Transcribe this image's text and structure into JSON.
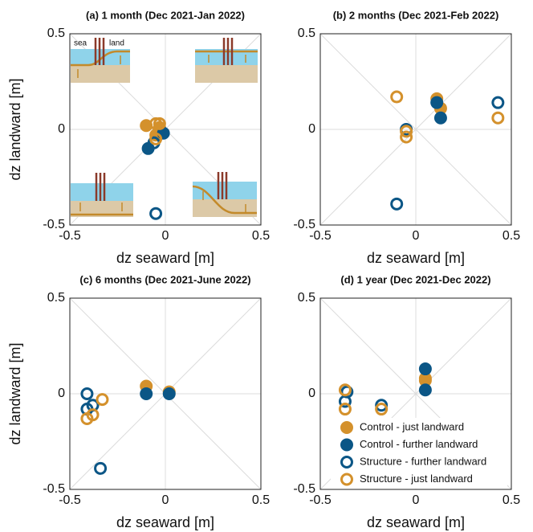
{
  "chart_data": [
    {
      "type": "scatter",
      "title": "(a) 1 month (Dec 2021-Jan 2022)",
      "xlabel": "dz seaward [m]",
      "ylabel": "dz landward [m]",
      "annotations": [
        "sea",
        "land"
      ],
      "xlim": [
        -0.5,
        0.5
      ],
      "ylim": [
        -0.5,
        0.5
      ],
      "xticks": [
        -0.5,
        0,
        0.5
      ],
      "yticks": [
        -0.5,
        0,
        0.5
      ],
      "grid": true,
      "series": [
        {
          "color": "#d4912c",
          "filled": true,
          "x": [
            -0.1,
            -0.03,
            -0.05
          ],
          "y": [
            0.02,
            0.01,
            -0.03
          ]
        },
        {
          "color": "#0b5686",
          "filled": true,
          "x": [
            -0.09,
            -0.01
          ],
          "y": [
            -0.1,
            -0.02
          ]
        },
        {
          "color": "#0b5686",
          "filled": false,
          "x": [
            -0.05,
            -0.06
          ],
          "y": [
            -0.44,
            -0.07
          ]
        },
        {
          "color": "#d4912c",
          "filled": false,
          "x": [
            -0.05,
            -0.05,
            -0.03
          ],
          "y": [
            0.03,
            -0.05,
            0.03
          ]
        }
      ]
    },
    {
      "type": "scatter",
      "title": "(b) 2 months (Dec 2021-Feb 2022)",
      "xlabel": "dz seaward [m]",
      "xlim": [
        -0.5,
        0.5
      ],
      "ylim": [
        -0.5,
        0.5
      ],
      "xticks": [
        -0.5,
        0,
        0.5
      ],
      "yticks": [
        -0.5,
        0,
        0.5
      ],
      "grid": true,
      "series": [
        {
          "color": "#d4912c",
          "filled": true,
          "x": [
            0.11,
            0.13
          ],
          "y": [
            0.16,
            0.11
          ]
        },
        {
          "color": "#0b5686",
          "filled": true,
          "x": [
            0.11,
            0.13
          ],
          "y": [
            0.14,
            0.06
          ]
        },
        {
          "color": "#0b5686",
          "filled": false,
          "x": [
            -0.1,
            -0.05,
            0.43
          ],
          "y": [
            -0.39,
            0.0,
            0.14
          ]
        },
        {
          "color": "#d4912c",
          "filled": false,
          "x": [
            -0.1,
            -0.05,
            -0.05,
            0.43
          ],
          "y": [
            0.17,
            -0.01,
            -0.04,
            0.06
          ]
        }
      ]
    },
    {
      "type": "scatter",
      "title": "(c) 6 months (Dec 2021-June 2022)",
      "xlabel": "dz seaward [m]",
      "ylabel": "dz landward [m]",
      "xlim": [
        -0.5,
        0.5
      ],
      "ylim": [
        -0.5,
        0.5
      ],
      "xticks": [
        -0.5,
        0,
        0.5
      ],
      "yticks": [
        -0.5,
        0,
        0.5
      ],
      "grid": true,
      "series": [
        {
          "color": "#d4912c",
          "filled": true,
          "x": [
            -0.1,
            0.02
          ],
          "y": [
            0.04,
            0.01
          ]
        },
        {
          "color": "#0b5686",
          "filled": true,
          "x": [
            -0.1,
            0.02
          ],
          "y": [
            0.0,
            0.0
          ]
        },
        {
          "color": "#0b5686",
          "filled": false,
          "x": [
            -0.41,
            -0.38,
            -0.41,
            -0.34
          ],
          "y": [
            0.0,
            -0.06,
            -0.08,
            -0.39
          ]
        },
        {
          "color": "#d4912c",
          "filled": false,
          "x": [
            -0.33,
            -0.38,
            -0.41
          ],
          "y": [
            -0.03,
            -0.11,
            -0.13
          ]
        }
      ]
    },
    {
      "type": "scatter",
      "title": "(d) 1 year (Dec 2021-Dec 2022)",
      "xlabel": "dz seaward [m]",
      "xlim": [
        -0.5,
        0.5
      ],
      "ylim": [
        -0.5,
        0.5
      ],
      "xticks": [
        -0.5,
        0,
        0.5
      ],
      "yticks": [
        -0.5,
        0,
        0.5
      ],
      "grid": true,
      "legend": "lower right",
      "series": [
        {
          "name": "Control - just landward",
          "color": "#d4912c",
          "filled": true,
          "x": [
            0.05,
            0.05
          ],
          "y": [
            0.08,
            0.07
          ]
        },
        {
          "name": "Control - further landward",
          "color": "#0b5686",
          "filled": true,
          "x": [
            0.05,
            0.05
          ],
          "y": [
            0.13,
            0.02
          ]
        },
        {
          "name": "Structure - further landward",
          "color": "#0b5686",
          "filled": false,
          "x": [
            -0.37,
            -0.36,
            -0.18
          ],
          "y": [
            -0.04,
            0.01,
            -0.06
          ]
        },
        {
          "name": "Structure - just landward",
          "color": "#d4912c",
          "filled": false,
          "x": [
            -0.37,
            -0.37,
            -0.18
          ],
          "y": [
            0.02,
            -0.08,
            -0.08
          ]
        }
      ]
    }
  ]
}
